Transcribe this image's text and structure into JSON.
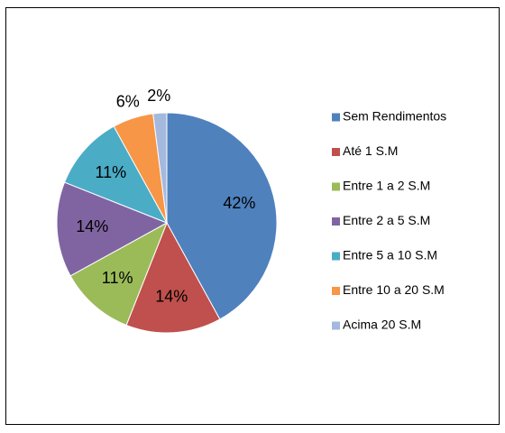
{
  "chart_data": {
    "type": "pie",
    "categories": [
      "Sem Rendimentos",
      "Até 1 S.M",
      "Entre 1 a 2 S.M",
      "Entre 2 a 5 S.M",
      "Entre 5 a 10 S.M",
      "Entre 10 a 20 S.M",
      "Acima 20 S.M"
    ],
    "values": [
      42,
      14,
      11,
      14,
      11,
      6,
      2
    ],
    "value_labels": [
      "42%",
      "14%",
      "11%",
      "14%",
      "11%",
      "6%",
      "2%"
    ],
    "colors": [
      "#4f81bd",
      "#c0504d",
      "#9bbb59",
      "#8064a2",
      "#4bacc6",
      "#f79646",
      "#a5b8de"
    ],
    "legend": "right"
  }
}
